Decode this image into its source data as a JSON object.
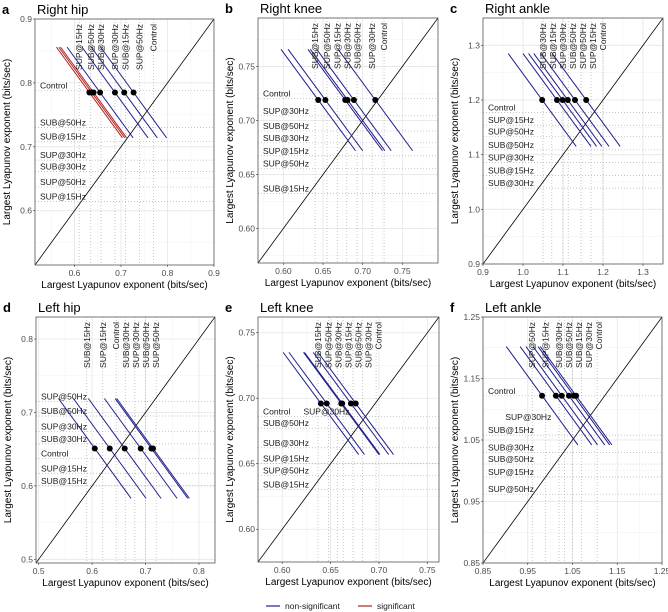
{
  "legend": [
    {
      "label": "non-significant",
      "color": "#1f1f8f"
    },
    {
      "label": "significant",
      "color": "#b22222"
    }
  ],
  "chart_data": [
    {
      "type": "scatter",
      "letter": "a",
      "title": "Right hip",
      "xlabel": "Largest Lyapunov exponent (bits/sec)",
      "ylabel": "Largest Lyapunov exponent (bits/sec)",
      "xlim": [
        0.515,
        0.9
      ],
      "ylim": [
        0.515,
        0.9
      ],
      "ticks": [
        0.6,
        0.7,
        0.8,
        0.9
      ],
      "tick_labels": [
        "0.6",
        "0.7",
        "0.8",
        "0.9"
      ],
      "point_y": 0.785,
      "line_halfspan": 0.071,
      "points": [
        {
          "x": 0.632,
          "significant": true
        },
        {
          "x": 0.637,
          "significant": true
        },
        {
          "x": 0.641,
          "significant": true
        },
        {
          "x": 0.655,
          "significant": false
        },
        {
          "x": 0.687,
          "significant": false
        },
        {
          "x": 0.707,
          "significant": false
        },
        {
          "x": 0.727,
          "significant": false
        }
      ],
      "top_labels": [
        {
          "text": "SUP@15Hz",
          "x": 0.61
        },
        {
          "text": "SUB@50Hz",
          "x": 0.635
        },
        {
          "text": "SUB@30Hz",
          "x": 0.657
        },
        {
          "text": "SUP@30Hz",
          "x": 0.687
        },
        {
          "text": "SUB@15Hz",
          "x": 0.71
        },
        {
          "text": "SUP@50Hz",
          "x": 0.74
        },
        {
          "text": "Control",
          "x": 0.77
        }
      ],
      "left_labels": [
        {
          "text": "Control",
          "y": 0.796
        },
        {
          "text": "SUB@50Hz",
          "y": 0.738
        },
        {
          "text": "SUB@15Hz",
          "y": 0.716
        },
        {
          "text": "SUP@30Hz",
          "y": 0.687
        },
        {
          "text": "SUB@30Hz",
          "y": 0.669
        },
        {
          "text": "SUP@50Hz",
          "y": 0.645
        },
        {
          "text": "SUP@15Hz",
          "y": 0.622
        }
      ]
    },
    {
      "type": "scatter",
      "letter": "b",
      "title": "Right knee",
      "xlabel": "Largest Lyapunov exponent (bits/sec)",
      "ylabel": "Largest Lyapunov exponent (bits/sec)",
      "xlim": [
        0.568,
        0.795
      ],
      "ylim": [
        0.568,
        0.795
      ],
      "ticks": [
        0.6,
        0.65,
        0.7,
        0.75
      ],
      "tick_labels": [
        "0.60",
        "0.65",
        "0.70",
        "0.75"
      ],
      "point_y": 0.719,
      "line_halfspan": 0.047,
      "points": [
        {
          "x": 0.644,
          "significant": false
        },
        {
          "x": 0.653,
          "significant": false
        },
        {
          "x": 0.678,
          "significant": false
        },
        {
          "x": 0.681,
          "significant": false
        },
        {
          "x": 0.689,
          "significant": false
        },
        {
          "x": 0.716,
          "significant": false
        }
      ],
      "top_labels": [
        {
          "text": "SUB@15Hz",
          "x": 0.64
        },
        {
          "text": "SUP@50Hz",
          "x": 0.655
        },
        {
          "text": "SUP@15Hz",
          "x": 0.668
        },
        {
          "text": "SUB@30Hz",
          "x": 0.68
        },
        {
          "text": "SUB@50Hz",
          "x": 0.693
        },
        {
          "text": "SUP@30Hz",
          "x": 0.712
        },
        {
          "text": "Control",
          "x": 0.727
        }
      ],
      "left_labels": [
        {
          "text": "Control",
          "y": 0.725
        },
        {
          "text": "SUP@30Hz",
          "y": 0.709
        },
        {
          "text": "SUB@50Hz",
          "y": 0.695
        },
        {
          "text": "SUB@30Hz",
          "y": 0.684
        },
        {
          "text": "SUP@15Hz",
          "y": 0.672
        },
        {
          "text": "SUP@50Hz",
          "y": 0.66
        },
        {
          "text": "SUB@15Hz",
          "y": 0.637
        }
      ]
    },
    {
      "type": "scatter",
      "letter": "c",
      "title": "Right ankle",
      "xlabel": "Largest Lyapunov exponent (bits/sec)",
      "ylabel": "Largest Lyapunov exponent (bits/sec)",
      "xlim": [
        0.9,
        1.35
      ],
      "ylim": [
        0.9,
        1.35
      ],
      "ticks": [
        0.9,
        1.0,
        1.1,
        1.2,
        1.3
      ],
      "tick_labels": [
        "0.9",
        "1.0",
        "1.1",
        "1.2",
        "1.3"
      ],
      "point_y": 1.2,
      "line_halfspan": 0.085,
      "points": [
        {
          "x": 1.048,
          "significant": false
        },
        {
          "x": 1.085,
          "significant": false
        },
        {
          "x": 1.099,
          "significant": false
        },
        {
          "x": 1.112,
          "significant": false
        },
        {
          "x": 1.13,
          "significant": false
        },
        {
          "x": 1.158,
          "significant": false
        }
      ],
      "top_labels": [
        {
          "text": "SUB@30Hz",
          "x": 1.05
        },
        {
          "text": "SUB@15Hz",
          "x": 1.072
        },
        {
          "text": "SUP@30Hz",
          "x": 1.1
        },
        {
          "text": "SUB@50Hz",
          "x": 1.113
        },
        {
          "text": "SUP@50Hz",
          "x": 1.145
        },
        {
          "text": "SUP@15Hz",
          "x": 1.17
        },
        {
          "text": "Control",
          "x": 1.2
        }
      ],
      "left_labels": [
        {
          "text": "Control",
          "y": 1.186
        },
        {
          "text": "SUP@15Hz",
          "y": 1.163
        },
        {
          "text": "SUP@50Hz",
          "y": 1.142
        },
        {
          "text": "SUB@50Hz",
          "y": 1.118
        },
        {
          "text": "SUP@30Hz",
          "y": 1.095
        },
        {
          "text": "SUB@15Hz",
          "y": 1.071
        },
        {
          "text": "SUB@30Hz",
          "y": 1.048
        }
      ]
    },
    {
      "type": "scatter",
      "letter": "d",
      "title": "Left hip",
      "xlabel": "Largest Lyapunov exponent (bits/sec)",
      "ylabel": "Largest Lyapunov exponent (bits/sec)",
      "xlim": [
        0.495,
        0.83
      ],
      "ylim": [
        0.495,
        0.83
      ],
      "ticks": [
        0.5,
        0.6,
        0.7,
        0.8
      ],
      "tick_labels": [
        "0.5",
        "0.6",
        "0.7",
        "0.8"
      ],
      "point_y": 0.651,
      "line_halfspan": 0.068,
      "points": [
        {
          "x": 0.605,
          "significant": false
        },
        {
          "x": 0.633,
          "significant": false
        },
        {
          "x": 0.661,
          "significant": false
        },
        {
          "x": 0.691,
          "significant": false
        },
        {
          "x": 0.711,
          "significant": false
        },
        {
          "x": 0.714,
          "significant": false
        }
      ],
      "top_labels": [
        {
          "text": "SUB@15Hz",
          "x": 0.59
        },
        {
          "text": "SUP@15Hz",
          "x": 0.62
        },
        {
          "text": "Control",
          "x": 0.645
        },
        {
          "text": "SUB@30Hz",
          "x": 0.662
        },
        {
          "text": "SUP@30Hz",
          "x": 0.68
        },
        {
          "text": "SUB@50Hz",
          "x": 0.7
        },
        {
          "text": "SUP@50Hz",
          "x": 0.72
        }
      ],
      "left_labels": [
        {
          "text": "SUP@50Hz",
          "y": 0.722
        },
        {
          "text": "SUB@50Hz",
          "y": 0.702
        },
        {
          "text": "SUP@30Hz",
          "y": 0.681
        },
        {
          "text": "SUB@30Hz",
          "y": 0.664
        },
        {
          "text": "Control",
          "y": 0.644
        },
        {
          "text": "SUP@15Hz",
          "y": 0.624
        },
        {
          "text": "SUB@15Hz",
          "y": 0.607
        }
      ]
    },
    {
      "type": "scatter",
      "letter": "e",
      "title": "Left knee",
      "xlabel": "Largest Lyapunov exponent (bits/sec)",
      "ylabel": "Largest Lyapunov exponent (bits/sec)",
      "xlim": [
        0.575,
        0.762
      ],
      "ylim": [
        0.575,
        0.762
      ],
      "ticks": [
        0.6,
        0.65,
        0.7,
        0.75
      ],
      "tick_labels": [
        "0.60",
        "0.65",
        "0.70",
        "0.75"
      ],
      "point_y": 0.696,
      "line_halfspan": 0.039,
      "points": [
        {
          "x": 0.64,
          "significant": false
        },
        {
          "x": 0.646,
          "significant": false
        },
        {
          "x": 0.661,
          "significant": false
        },
        {
          "x": 0.662,
          "significant": false
        },
        {
          "x": 0.671,
          "significant": false
        },
        {
          "x": 0.676,
          "significant": false
        }
      ],
      "top_labels": [
        {
          "text": "SUB@15Hz",
          "x": 0.637
        },
        {
          "text": "SUP@50Hz",
          "x": 0.648
        },
        {
          "text": "SUB@30Hz",
          "x": 0.657
        },
        {
          "text": "SUP@15Hz",
          "x": 0.663
        },
        {
          "text": "SUB@50Hz",
          "x": 0.673
        },
        {
          "text": "SUP@30Hz",
          "x": 0.683
        },
        {
          "text": "Control",
          "x": 0.697
        }
      ],
      "left_labels": [
        {
          "text": "Control",
          "y": 0.69
        },
        {
          "text": "SUP@30Hz",
          "y": 0.69,
          "x": 0.622
        },
        {
          "text": "SUB@50Hz",
          "y": 0.681
        },
        {
          "text": "SUB@30Hz",
          "y": 0.666
        },
        {
          "text": "SUP@15Hz",
          "y": 0.654
        },
        {
          "text": "SUP@50Hz",
          "y": 0.645
        },
        {
          "text": "SUB@15Hz",
          "y": 0.634
        }
      ]
    },
    {
      "type": "scatter",
      "letter": "f",
      "title": "Left ankle",
      "xlabel": "Largest Lyapunov exponent (bits/sec)",
      "ylabel": "Largest Lyapunov exponent (bits/sec)",
      "xlim": [
        0.85,
        1.25
      ],
      "ylim": [
        0.85,
        1.25
      ],
      "ticks": [
        0.85,
        0.95,
        1.05,
        1.15,
        1.25
      ],
      "tick_labels": [
        "0.85",
        "0.95",
        "1.05",
        "1.15",
        "1.25"
      ],
      "point_y": 1.122,
      "line_halfspan": 0.08,
      "points": [
        {
          "x": 0.982,
          "significant": false
        },
        {
          "x": 1.013,
          "significant": false
        },
        {
          "x": 1.026,
          "significant": false
        },
        {
          "x": 1.042,
          "significant": false
        },
        {
          "x": 1.053,
          "significant": false
        },
        {
          "x": 1.058,
          "significant": false
        }
      ],
      "top_labels": [
        {
          "text": "SUP@50Hz",
          "x": 0.96
        },
        {
          "text": "SUP@15Hz",
          "x": 0.99
        },
        {
          "text": "SUB@30Hz",
          "x": 1.02
        },
        {
          "text": "SUB@50Hz",
          "x": 1.032
        },
        {
          "text": "SUB@15Hz",
          "x": 1.05
        },
        {
          "text": "SUP@30Hz",
          "x": 1.07
        },
        {
          "text": "Control",
          "x": 1.105
        }
      ],
      "left_labels": [
        {
          "text": "Control",
          "y": 1.13
        },
        {
          "text": "SUP@30Hz",
          "y": 1.087,
          "x": 0.9
        },
        {
          "text": "SUB@15Hz",
          "y": 1.066
        },
        {
          "text": "SUB@30Hz",
          "y": 1.038
        },
        {
          "text": "SUB@50Hz",
          "y": 1.019
        },
        {
          "text": "SUP@15Hz",
          "y": 0.998
        },
        {
          "text": "SUP@50Hz",
          "y": 0.97
        }
      ]
    }
  ]
}
